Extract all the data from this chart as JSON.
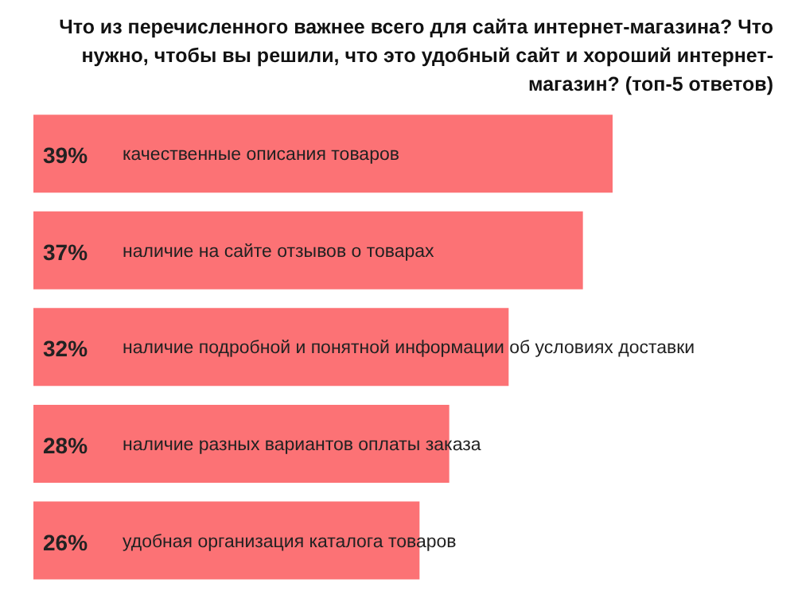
{
  "chart_data": {
    "type": "bar",
    "orientation": "horizontal",
    "title": "Что из перечисленного важнее всего для сайта интернет-магазина? Что нужно, чтобы вы решили, что это удобный сайт и хороший интернет-магазин? (топ-5 ответов)",
    "categories": [
      "качественные описания товаров",
      "наличие на сайте отзывов о товарах",
      "наличие подробной и понятной информации об условиях доставки",
      "наличие разных вариантов оплаты заказа",
      "удобная организация каталога товаров"
    ],
    "values": [
      39,
      37,
      32,
      28,
      26
    ],
    "value_labels": [
      "39%",
      "37%",
      "32%",
      "28%",
      "26%"
    ],
    "color": "#fc7275"
  }
}
